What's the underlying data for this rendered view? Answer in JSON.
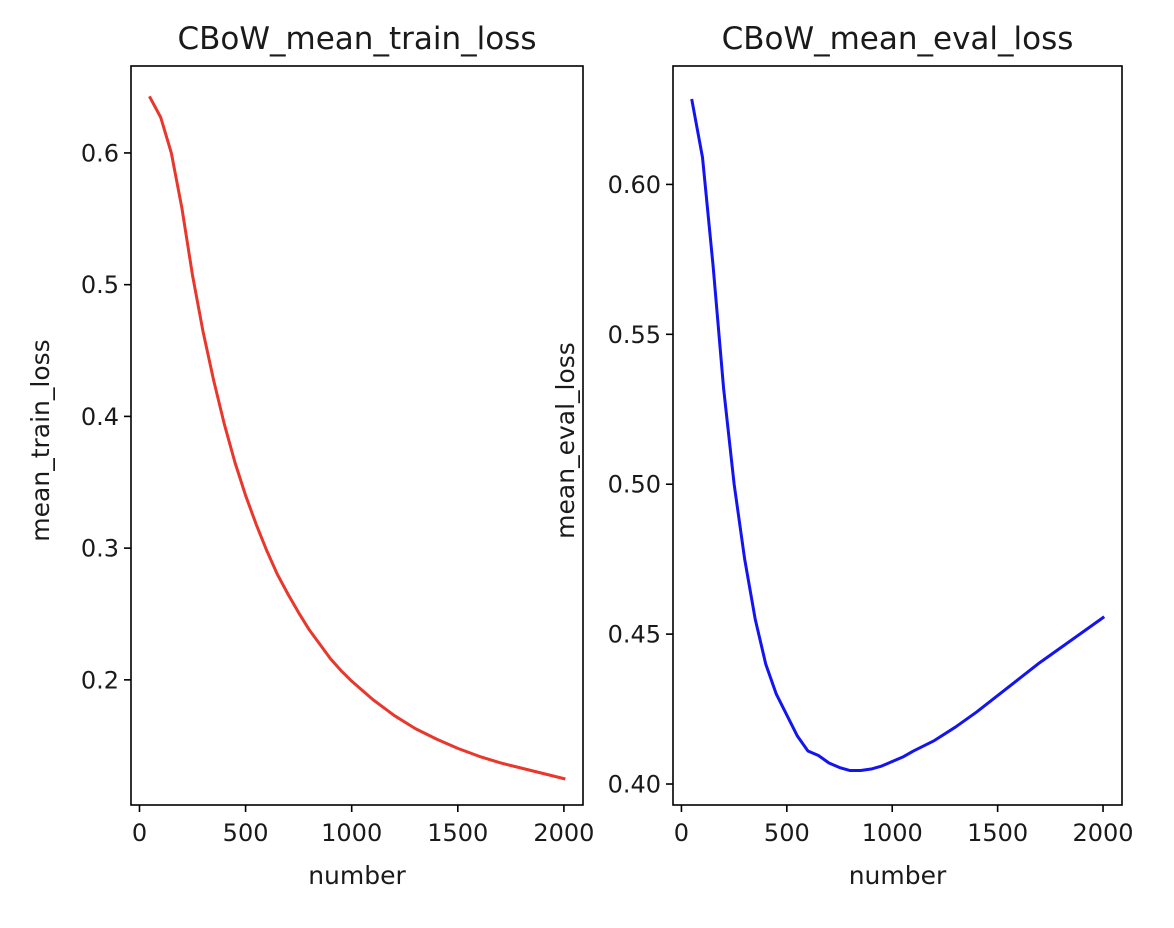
{
  "colors": {
    "train_line": "#e8372c",
    "eval_line": "#1414f0",
    "axes": "#000000"
  },
  "chart_data": [
    {
      "type": "line",
      "title": "CBoW_mean_train_loss",
      "xlabel": "number",
      "ylabel": "mean_train_loss",
      "xlim": [
        -40,
        2090
      ],
      "ylim": [
        0.105,
        0.666
      ],
      "xticks": [
        0,
        500,
        1000,
        1500,
        2000
      ],
      "xtick_labels": [
        "0",
        "500",
        "1000",
        "1500",
        "2000"
      ],
      "yticks": [
        0.2,
        0.3,
        0.4,
        0.5,
        0.6
      ],
      "ytick_labels": [
        "0.2",
        "0.3",
        "0.4",
        "0.5",
        "0.6"
      ],
      "grid": false,
      "series": [
        {
          "color": "#e8372c",
          "x": [
            50,
            100,
            150,
            200,
            250,
            300,
            350,
            400,
            450,
            500,
            550,
            600,
            650,
            700,
            750,
            800,
            850,
            900,
            950,
            1000,
            1100,
            1200,
            1300,
            1400,
            1500,
            1600,
            1700,
            1800,
            1900,
            2000
          ],
          "y": [
            0.642,
            0.627,
            0.6,
            0.558,
            0.507,
            0.464,
            0.427,
            0.394,
            0.365,
            0.34,
            0.318,
            0.298,
            0.28,
            0.265,
            0.251,
            0.238,
            0.227,
            0.216,
            0.207,
            0.199,
            0.185,
            0.173,
            0.163,
            0.155,
            0.148,
            0.142,
            0.137,
            0.133,
            0.129,
            0.125
          ]
        }
      ]
    },
    {
      "type": "line",
      "title": "CBoW_mean_eval_loss",
      "xlabel": "number",
      "ylabel": "mean_eval_loss",
      "xlim": [
        -40,
        2090
      ],
      "ylim": [
        0.393,
        0.6395
      ],
      "xticks": [
        0,
        500,
        1000,
        1500,
        2000
      ],
      "xtick_labels": [
        "0",
        "500",
        "1000",
        "1500",
        "2000"
      ],
      "yticks": [
        0.4,
        0.45,
        0.5,
        0.55,
        0.6
      ],
      "ytick_labels": [
        "0.40",
        "0.45",
        "0.50",
        "0.55",
        "0.60"
      ],
      "grid": false,
      "series": [
        {
          "color": "#1414f0",
          "x": [
            50,
            100,
            150,
            200,
            250,
            300,
            350,
            400,
            450,
            500,
            550,
            600,
            650,
            700,
            750,
            800,
            850,
            900,
            950,
            1000,
            1050,
            1100,
            1200,
            1300,
            1400,
            1500,
            1600,
            1700,
            1800,
            1900,
            2000
          ],
          "y": [
            0.628,
            0.609,
            0.573,
            0.532,
            0.5,
            0.475,
            0.455,
            0.44,
            0.43,
            0.423,
            0.416,
            0.411,
            0.4095,
            0.407,
            0.4055,
            0.4045,
            0.4045,
            0.405,
            0.406,
            0.4075,
            0.409,
            0.411,
            0.4145,
            0.419,
            0.424,
            0.4295,
            0.435,
            0.4405,
            0.4455,
            0.4505,
            0.4555
          ]
        }
      ]
    }
  ]
}
